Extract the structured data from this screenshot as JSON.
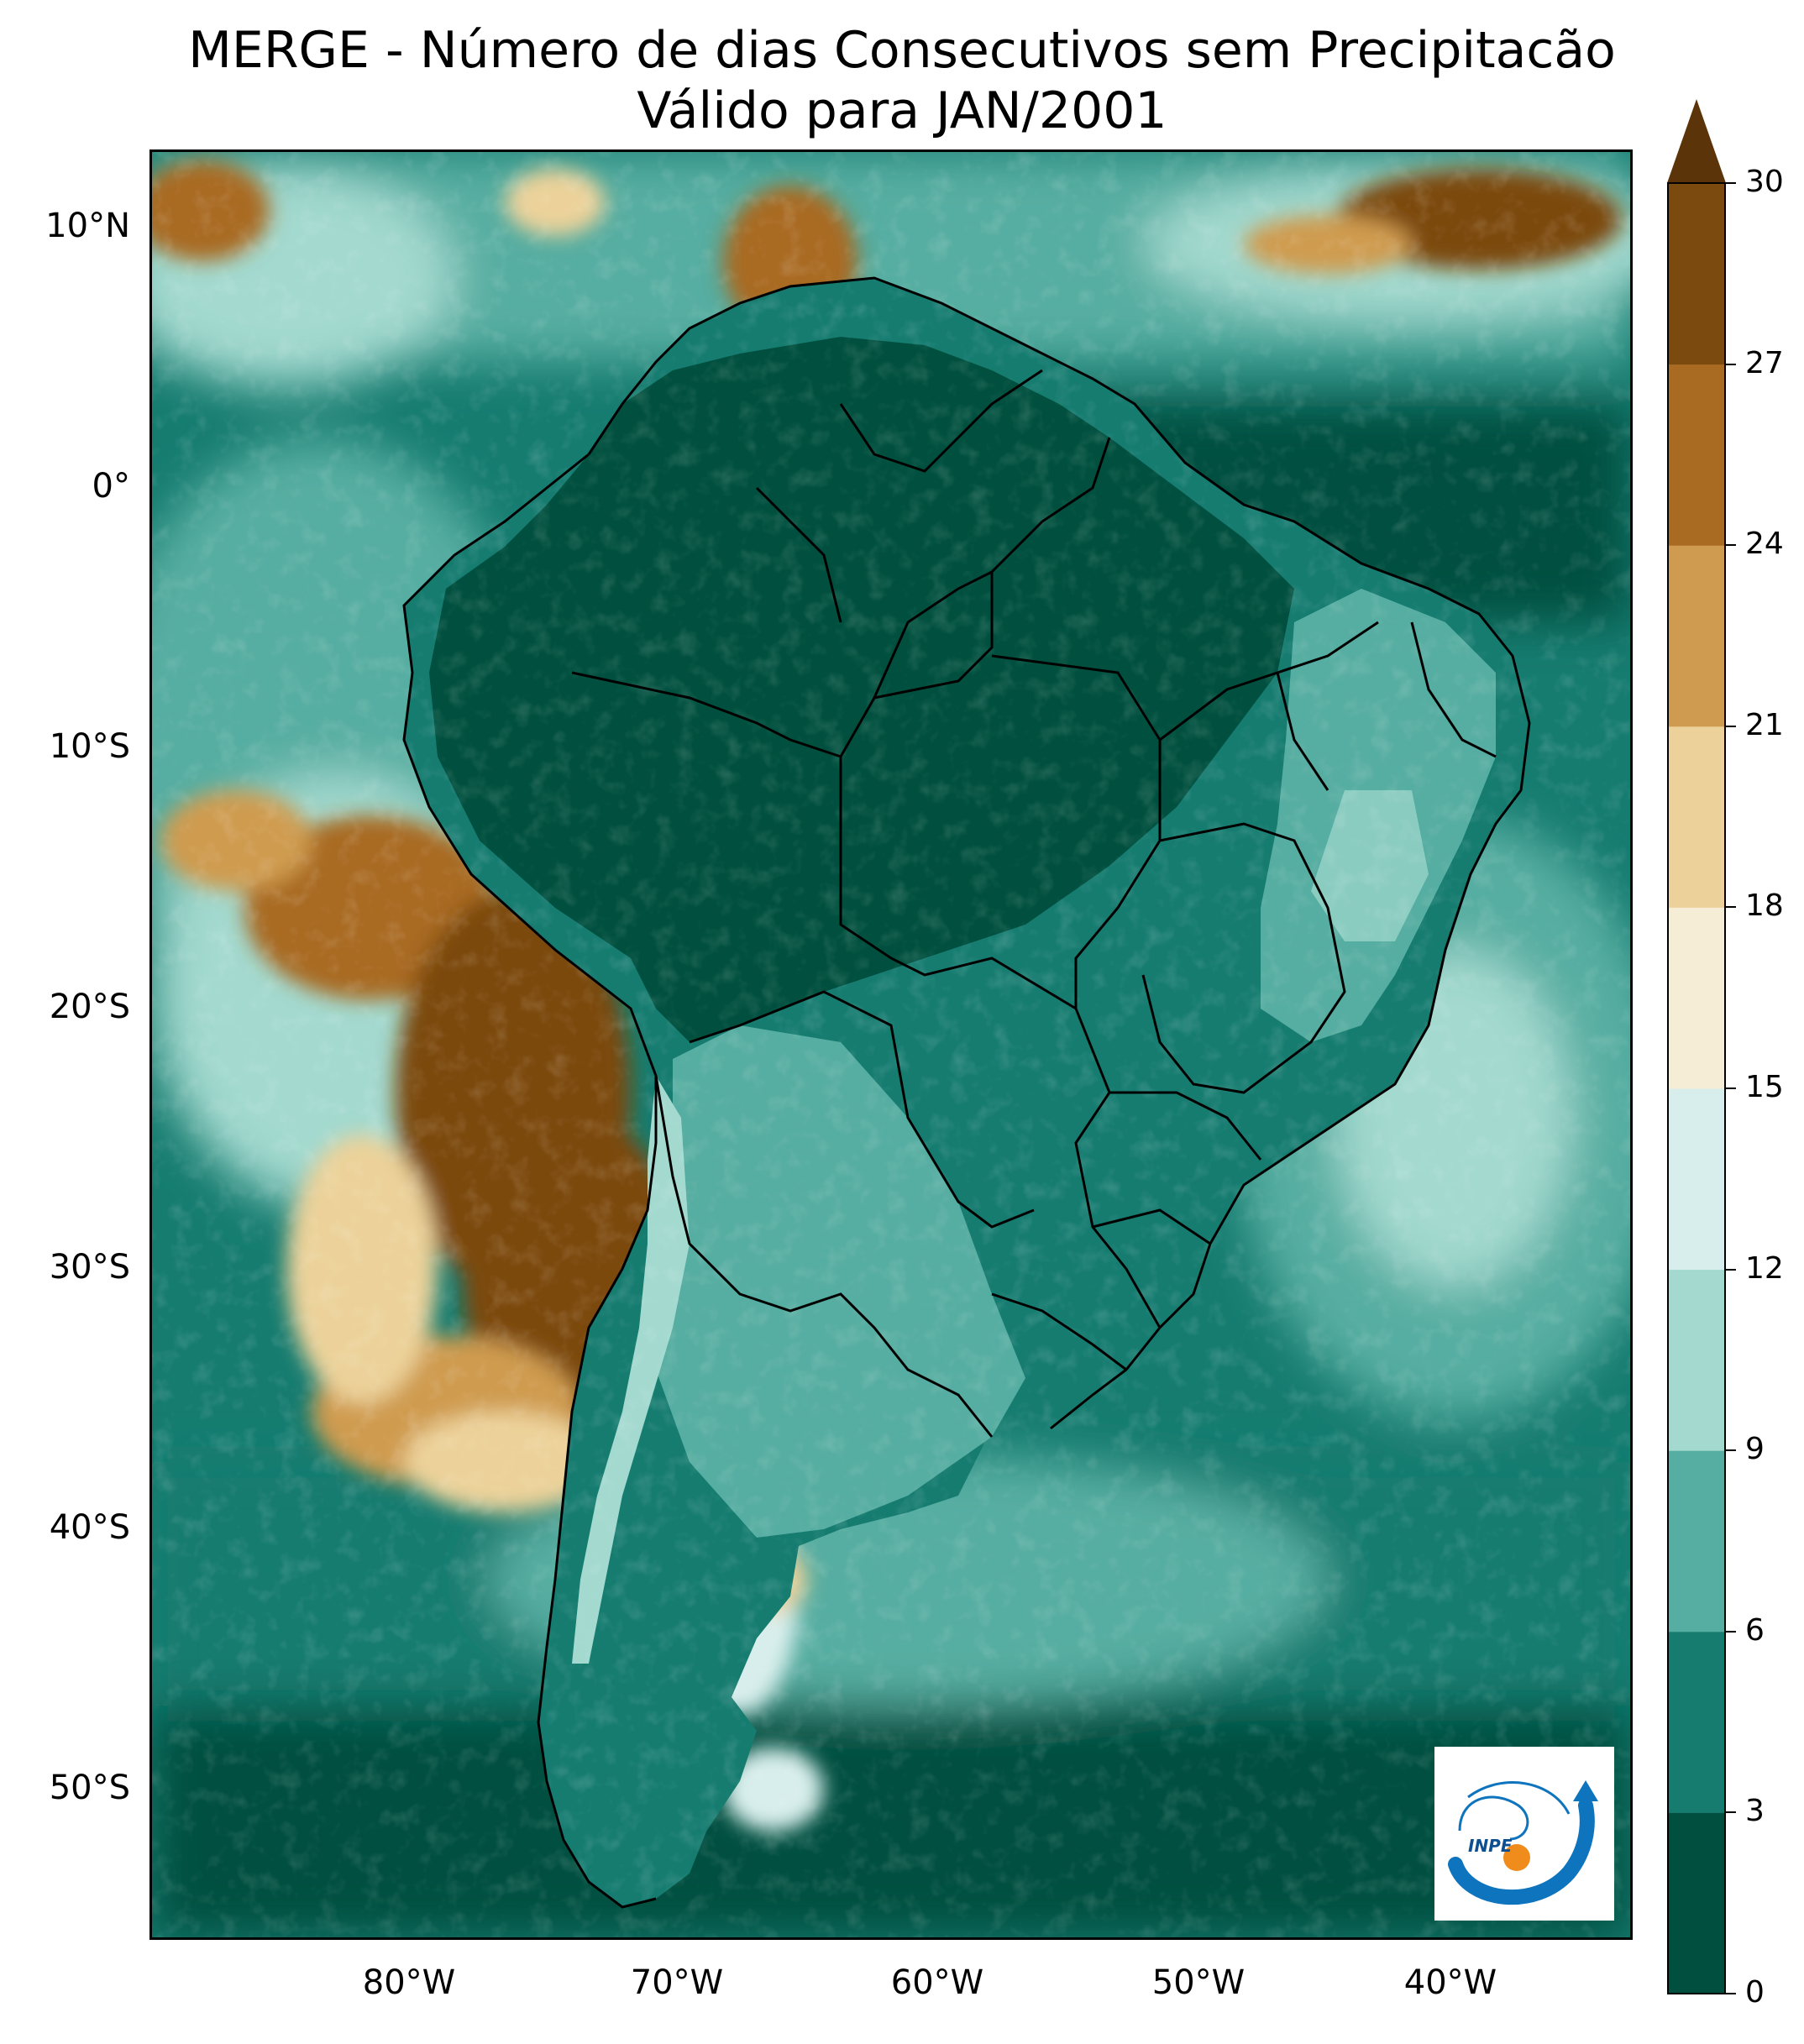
{
  "title": {
    "line1": "MERGE - Número de dias Consecutivos sem Precipitacão",
    "line2": "Válido para JAN/2001"
  },
  "map": {
    "lat_ticks": [
      "10°N",
      "0°",
      "10°S",
      "20°S",
      "30°S",
      "40°S",
      "50°S"
    ],
    "lon_ticks": [
      "80°W",
      "70°W",
      "60°W",
      "50°W",
      "40°W"
    ],
    "border_color": "#000000"
  },
  "colorbar": {
    "labels": [
      "0",
      "3",
      "6",
      "9",
      "12",
      "15",
      "18",
      "21",
      "24",
      "27",
      "30"
    ],
    "bins": [
      0,
      3,
      6,
      9,
      12,
      15,
      18,
      21,
      24,
      27,
      30
    ],
    "colors": [
      "#01503f",
      "#167c70",
      "#56ada1",
      "#a3d9cf",
      "#d8eeec",
      "#f6edd6",
      "#ecd29a",
      "#cf9b50",
      "#a96a22",
      "#7b4a0f"
    ],
    "extend_color": "#5b3409",
    "extend": "max"
  },
  "logo": {
    "text": "INPE",
    "icon": "inpe-logo-icon",
    "ring_color": "#0e74bd",
    "dot_color": "#f08c1c"
  }
}
